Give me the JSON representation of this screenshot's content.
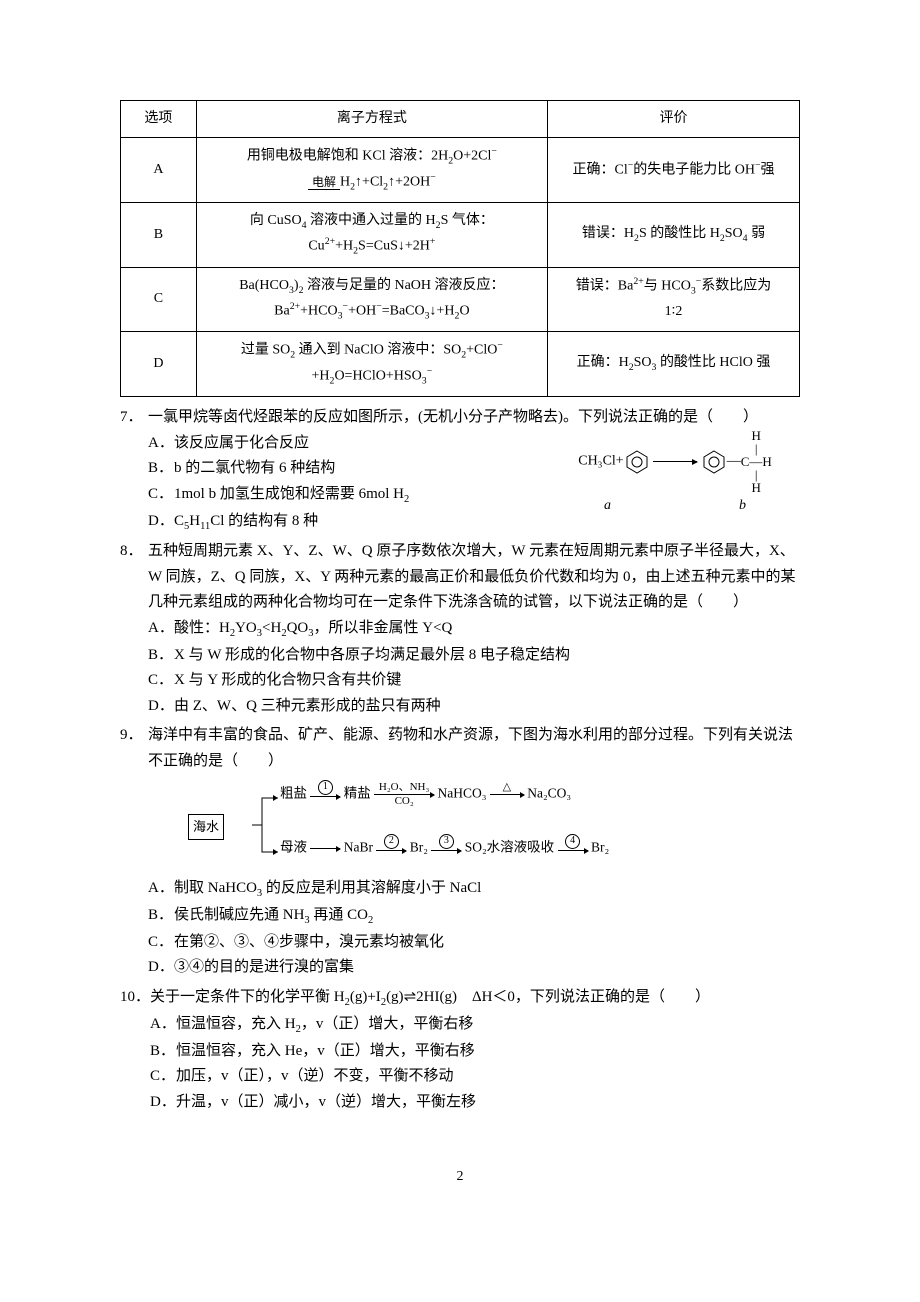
{
  "table": {
    "headers": [
      "选项",
      "离子方程式",
      "评价"
    ],
    "rows": [
      {
        "opt": "A",
        "eq_html": "用铜电极电解饱和 KCl 溶液：2H<span class='sub'>2</span>O+2Cl<span class='sup'>−</span><br><span class='underline-electro'><span class='top'>电解</span></span>H<span class='sub'>2</span>↑+Cl<span class='sub'>2</span>↑+2OH<span class='sup'>−</span>",
        "ev_html": "正确：Cl<span class='sup'>−</span>的失电子能力比 OH<span class='sup'>−</span>强"
      },
      {
        "opt": "B",
        "eq_html": "向 CuSO<span class='sub'>4</span> 溶液中通入过量的 H<span class='sub'>2</span>S 气体：<br>Cu<span class='sup'>2+</span>+H<span class='sub'>2</span>S=CuS↓+2H<span class='sup'>+</span>",
        "ev_html": "错误：H<span class='sub'>2</span>S 的酸性比 H<span class='sub'>2</span>SO<span class='sub'>4</span> 弱"
      },
      {
        "opt": "C",
        "eq_html": "Ba(HCO<span class='sub'>3</span>)<span class='sub'>2</span> 溶液与足量的 NaOH 溶液反应：<br>Ba<span class='sup'>2+</span>+HCO<span class='sub'>3</span><span class='sup'>−</span>+OH<span class='sup'>−</span>=BaCO<span class='sub'>3</span>↓+H<span class='sub'>2</span>O",
        "ev_html": "错误：Ba<span class='sup'>2+</span>与 HCO<span class='sub'>3</span><span class='sup'>−</span>系数比应为<br>1∶2"
      },
      {
        "opt": "D",
        "eq_html": "过量 SO<span class='sub'>2</span> 通入到 NaClO 溶液中：SO<span class='sub'>2</span>+ClO<span class='sup'>−</span><br>+H<span class='sub'>2</span>O=HClO+HSO<span class='sub'>3</span><span class='sup'>−</span>",
        "ev_html": "正确：H<span class='sub'>2</span>SO<span class='sub'>3</span> 的酸性比 HClO 强"
      }
    ]
  },
  "q7": {
    "num": "7．",
    "stem": "一氯甲烷等卤代烃跟苯的反应如图所示，(无机小分子产物略去)。下列说法正确的是（　　）",
    "opts": {
      "A": "该反应属于化合反应",
      "B": "b 的二氯代物有 6 种结构",
      "C_html": "1mol b 加氢生成饱和烃需要 6mol H<span class='sub'>2</span>",
      "D_html": "C<span class='sub'>5</span>H<span class='sub'>11</span>Cl 的结构有 8 种"
    },
    "fig": {
      "lhs": "CH₃Cl+",
      "a": "a",
      "b": "b"
    }
  },
  "q8": {
    "num": "8．",
    "stem": "五种短周期元素 X、Y、Z、W、Q 原子序数依次增大，W 元素在短周期元素中原子半径最大，X、W 同族，Z、Q 同族，X、Y 两种元素的最高正价和最低负价代数和均为 0，由上述五种元素中的某几种元素组成的两种化合物均可在一定条件下洗涤含硫的试管，以下说法正确的是（　　）",
    "opts": {
      "A_html": "酸性：H<span class='sub'>2</span>YO<span class='sub'>3</span>&lt;H<span class='sub'>2</span>QO<span class='sub'>3</span>，所以非金属性 Y&lt;Q",
      "B": "X 与 W 形成的化合物中各原子均满足最外层 8 电子稳定结构",
      "C": "X 与 Y 形成的化合物只含有共价键",
      "D": "由 Z、W、Q 三种元素形成的盐只有两种"
    }
  },
  "q9": {
    "num": "9．",
    "stem": "海洋中有丰富的食品、矿产、能源、药物和水产资源，下图为海水利用的部分过程。下列有关说法不正确的是（　　）",
    "opts": {
      "A_html": "制取 NaHCO<span class='sub'>3</span> 的反应是利用其溶解度小于 NaCl",
      "B_html": "侯氏制碱应先通 NH<span class='sub'>3</span> 再通 CO<span class='sub'>2</span>",
      "C": "在第②、③、④步骤中，溴元素均被氧化",
      "D": "③④的目的是进行溴的富集"
    },
    "flow": {
      "sea": "海水",
      "crude": "粗盐",
      "refined": "精盐",
      "nahco3": "NaHCO₃",
      "na2co3": "Na₂CO₃",
      "mother": "母液",
      "nabr": "NaBr",
      "br2a": "Br₂",
      "so2abs": "SO₂水溶液吸收",
      "br2b": "Br₂",
      "lab_top": "H₂O、NH₃",
      "lab_bot": "CO₂",
      "tri": "△"
    }
  },
  "q10": {
    "num": "10．",
    "stem_html": "关于一定条件下的化学平衡 H<span class='sub'>2</span>(g)+I<span class='sub'>2</span>(g)<span class='eq-arrow'>⇌</span>2HI(g)　ΔH＜0，下列说法正确的是（　　）",
    "opts": {
      "A_html": "恒温恒容，充入 H<span class='sub'>2</span>，v（正）增大，平衡右移",
      "B": "恒温恒容，充入 He，v（正）增大，平衡右移",
      "C": "加压，v（正），v（逆）不变，平衡不移动",
      "D": "升温，v（正）减小，v（逆）增大，平衡左移"
    }
  },
  "page_number": "2"
}
